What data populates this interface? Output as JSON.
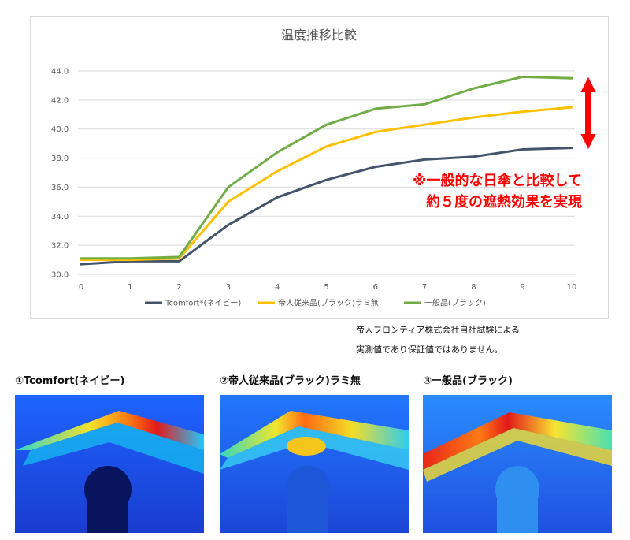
{
  "chart_data": {
    "type": "line",
    "title": "温度推移比較",
    "x": [
      0,
      1,
      2,
      3,
      4,
      5,
      6,
      7,
      8,
      9,
      10
    ],
    "x_tick_labels": [
      "0",
      "1",
      "2",
      "3",
      "4",
      "5",
      "6",
      "7",
      "8",
      "9",
      "10"
    ],
    "ylim": [
      30.0,
      44.0
    ],
    "y_ticks": [
      30.0,
      32.0,
      34.0,
      36.0,
      38.0,
      40.0,
      42.0,
      44.0
    ],
    "y_tick_labels": [
      "30.0",
      "32.0",
      "34.0",
      "36.0",
      "38.0",
      "40.0",
      "42.0",
      "44.0"
    ],
    "grid": true,
    "legend_position": "bottom",
    "series": [
      {
        "name": "Tcomfort*(ネイビー)",
        "color": "#44546a",
        "values": [
          30.7,
          30.9,
          30.9,
          33.4,
          35.3,
          36.5,
          37.4,
          37.9,
          38.1,
          38.6,
          38.7
        ]
      },
      {
        "name": "帝人従来品(ブラック)ラミ無",
        "color": "#ffc000",
        "values": [
          31.0,
          31.0,
          31.1,
          35.0,
          37.1,
          38.8,
          39.8,
          40.3,
          40.8,
          41.2,
          41.5
        ]
      },
      {
        "name": "一般品(ブラック)",
        "color": "#70ad47",
        "values": [
          31.1,
          31.1,
          31.2,
          36.0,
          38.4,
          40.3,
          41.4,
          41.7,
          42.8,
          43.6,
          43.5
        ]
      }
    ],
    "annotation": {
      "lines": [
        "※一般的な日傘と比較して",
        "約５度の遮熱効果を実現"
      ],
      "color": "#ff0000",
      "arrow_range": [
        38.6,
        43.6
      ]
    }
  },
  "footnote": {
    "line1": "帝人フロンティア株式会社自社試験による",
    "line2": "実測値であり保証値ではありません。"
  },
  "thermal_images": [
    {
      "label": "①Tcomfort(ネイビー)"
    },
    {
      "label": "②帝人従来品(ブラック)ラミ無"
    },
    {
      "label": "③ー般品(ブラック)"
    }
  ]
}
